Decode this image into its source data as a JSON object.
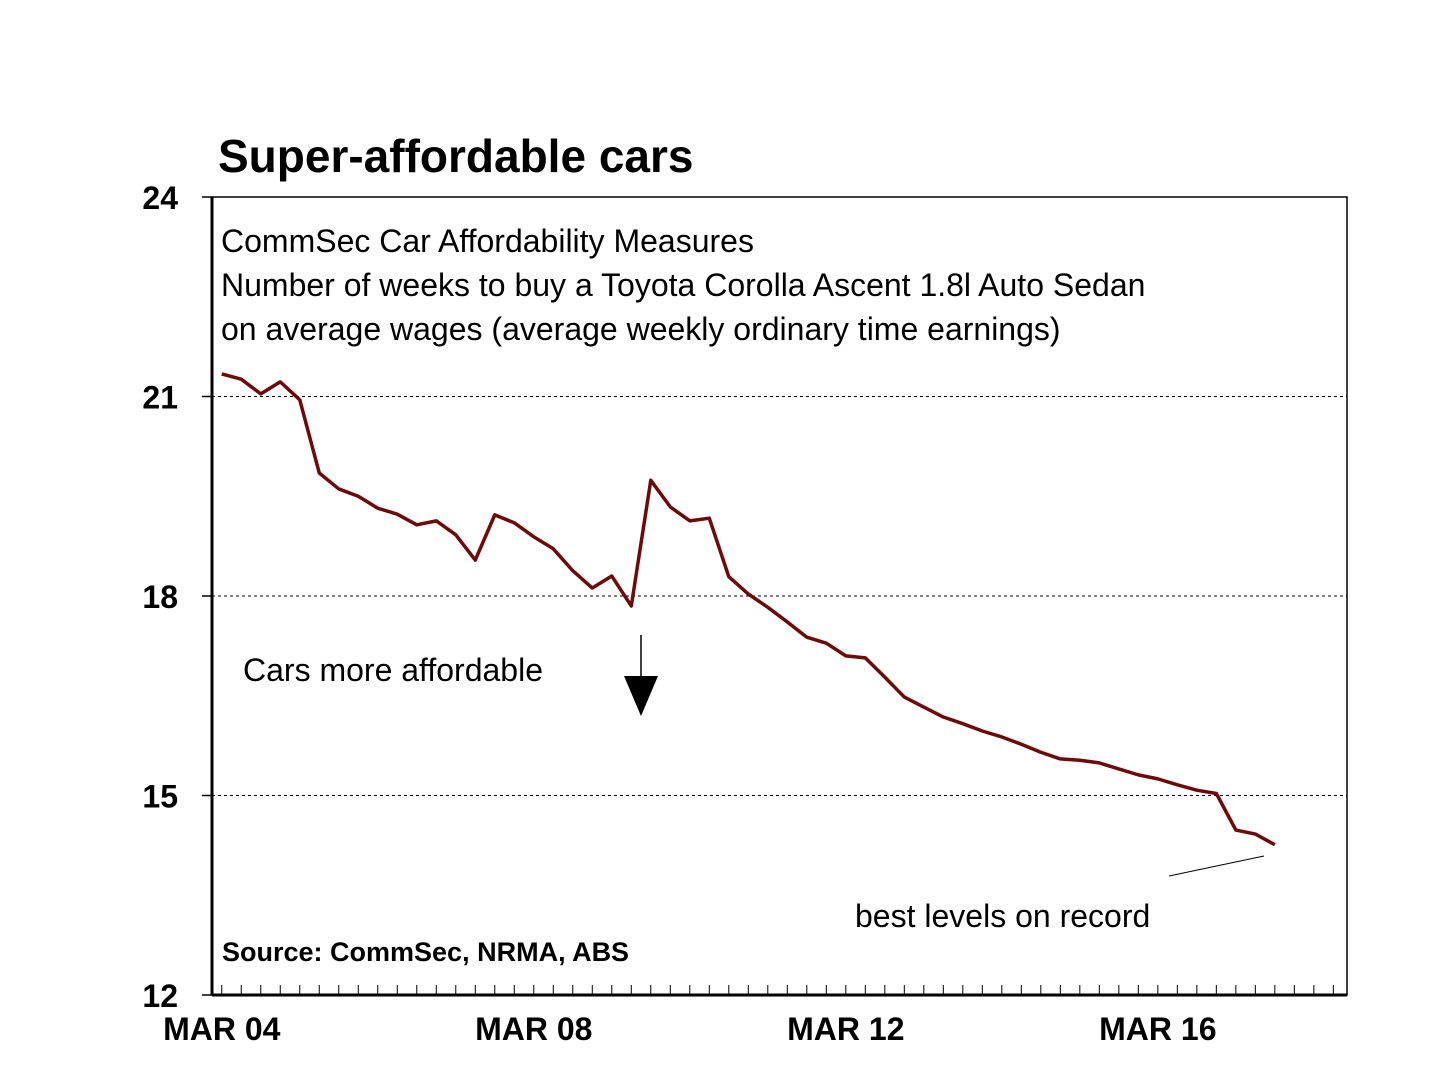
{
  "chart_data": {
    "type": "line",
    "title": "Super-affordable cars",
    "subtitle_lines": [
      "CommSec Car Affordability Measures",
      "Number of weeks to buy a Toyota Corolla Ascent 1.8l Auto Sedan",
      "on average wages (average weekly ordinary time earnings)"
    ],
    "source": "Source: CommSec, NRMA, ABS",
    "annotations": {
      "affordable": "Cars more affordable",
      "record": "best levels on record"
    },
    "xlabel": "",
    "ylabel": "",
    "x_unit": "quarter index from Mar 2004",
    "xlim": [
      -0.5,
      57.7
    ],
    "ylim": [
      12,
      24
    ],
    "yticks": [
      24,
      21,
      18,
      15,
      12
    ],
    "gridlines": [
      21,
      18,
      15
    ],
    "xtick_labels": [
      {
        "label": "MAR 04",
        "x": 0
      },
      {
        "label": "MAR 08",
        "x": 16
      },
      {
        "label": "MAR 12",
        "x": 32
      },
      {
        "label": "MAR 16",
        "x": 48
      }
    ],
    "series": [
      {
        "name": "Weeks to buy a Toyota Corolla",
        "color": "#6e0a0a",
        "values": [
          21.34,
          21.26,
          21.04,
          21.22,
          20.95,
          19.85,
          19.61,
          19.5,
          19.32,
          19.23,
          19.07,
          19.13,
          18.92,
          18.54,
          19.22,
          19.1,
          18.89,
          18.71,
          18.38,
          18.12,
          18.3,
          17.85,
          19.74,
          19.34,
          19.13,
          19.17,
          18.29,
          18.03,
          17.83,
          17.61,
          17.38,
          17.29,
          17.1,
          17.07,
          16.78,
          16.48,
          16.33,
          16.18,
          16.08,
          15.97,
          15.88,
          15.77,
          15.65,
          15.55,
          15.53,
          15.49,
          15.4,
          15.31,
          15.25,
          15.16,
          15.08,
          15.03,
          14.48,
          14.42,
          14.26
        ]
      }
    ]
  }
}
